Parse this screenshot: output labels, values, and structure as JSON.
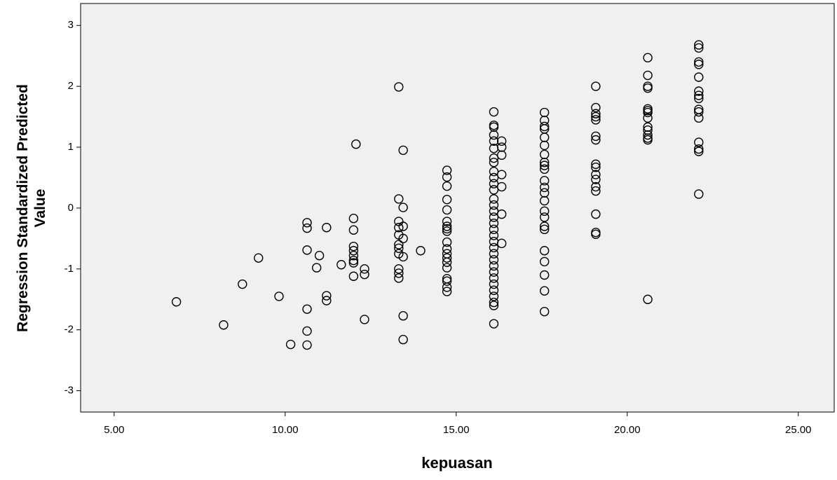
{
  "chart_data": {
    "type": "scatter",
    "x_label": "kepuasan",
    "y_label": "Regression Standardized Predicted Value",
    "color": "#000000",
    "xlim": [
      4.02,
      26.05
    ],
    "ylim": [
      -3.35,
      3.36
    ],
    "xticks": [
      {
        "value": 5,
        "label": "5.00"
      },
      {
        "value": 10,
        "label": "10.00"
      },
      {
        "value": 15,
        "label": "15.00"
      },
      {
        "value": 20,
        "label": "20.00"
      },
      {
        "value": 25,
        "label": "25.00"
      }
    ],
    "yticks": [
      -3,
      -2,
      -1,
      0,
      1,
      2,
      3
    ],
    "x": [
      6.82,
      8.2,
      8.75,
      9.22,
      9.82,
      10.16,
      10.64,
      10.64,
      10.64,
      10.64,
      10.64,
      10.64,
      10.92,
      11.0,
      11.21,
      11.21,
      11.21,
      11.64,
      12.0,
      12.0,
      12.0,
      12.0,
      12.0,
      12.0,
      12.0,
      12.0,
      12.07,
      12.32,
      12.32,
      12.32,
      13.32,
      13.32,
      13.32,
      13.32,
      13.32,
      13.32,
      13.32,
      13.32,
      13.32,
      13.32,
      13.32,
      13.45,
      13.45,
      13.45,
      13.45,
      13.45,
      13.45,
      13.45,
      13.96,
      14.73,
      14.73,
      14.73,
      14.73,
      14.73,
      14.73,
      14.73,
      14.73,
      14.73,
      14.73,
      14.73,
      14.73,
      14.73,
      14.73,
      14.73,
      14.73,
      14.73,
      14.73,
      14.73,
      16.1,
      16.1,
      16.1,
      16.1,
      16.1,
      16.1,
      16.1,
      16.1,
      16.1,
      16.1,
      16.1,
      16.1,
      16.1,
      16.1,
      16.1,
      16.1,
      16.1,
      16.1,
      16.1,
      16.1,
      16.1,
      16.1,
      16.1,
      16.1,
      16.1,
      16.1,
      16.1,
      16.1,
      16.1,
      16.1,
      16.1,
      16.1,
      16.33,
      16.33,
      16.33,
      16.33,
      16.33,
      16.33,
      16.33,
      17.58,
      17.58,
      17.58,
      17.58,
      17.58,
      17.58,
      17.58,
      17.58,
      17.58,
      17.58,
      17.58,
      17.58,
      17.58,
      17.58,
      17.58,
      17.58,
      17.58,
      17.58,
      17.58,
      17.58,
      17.58,
      17.58,
      17.58,
      19.08,
      19.08,
      19.08,
      19.08,
      19.08,
      19.08,
      19.08,
      19.08,
      19.08,
      19.08,
      19.08,
      19.08,
      19.08,
      19.08,
      19.08,
      19.08,
      20.6,
      20.6,
      20.6,
      20.6,
      20.6,
      20.6,
      20.6,
      20.6,
      20.6,
      20.6,
      20.6,
      20.6,
      20.6,
      20.6,
      22.09,
      22.09,
      22.09,
      22.09,
      22.09,
      22.09,
      22.09,
      22.09,
      22.09,
      22.09,
      22.09,
      22.09,
      22.09,
      22.09,
      22.09
    ],
    "values": [
      -1.54,
      -1.92,
      -1.25,
      -0.82,
      -1.45,
      -2.24,
      -0.24,
      -0.33,
      -0.69,
      -1.66,
      -2.02,
      -2.25,
      -0.98,
      -0.78,
      -0.32,
      -1.44,
      -1.52,
      -0.93,
      -0.17,
      -0.36,
      -0.63,
      -0.7,
      -0.78,
      -0.86,
      -0.9,
      -1.12,
      1.05,
      -1.0,
      -1.09,
      -1.83,
      1.99,
      0.15,
      -0.22,
      -0.32,
      -0.44,
      -0.6,
      -0.66,
      -0.75,
      -1.0,
      -1.07,
      -1.15,
      0.95,
      0.01,
      -0.3,
      -0.5,
      -0.8,
      -1.77,
      -2.16,
      -0.7,
      0.62,
      0.51,
      0.36,
      0.14,
      -0.03,
      -0.22,
      -0.3,
      -0.34,
      -0.38,
      -0.56,
      -0.67,
      -0.75,
      -0.82,
      -0.89,
      -0.98,
      -1.16,
      -1.2,
      -1.3,
      -1.37,
      1.58,
      1.36,
      1.33,
      1.2,
      1.1,
      0.98,
      0.82,
      0.75,
      0.6,
      0.5,
      0.4,
      0.3,
      0.15,
      0.05,
      -0.05,
      -0.15,
      -0.25,
      -0.35,
      -0.45,
      -0.55,
      -0.65,
      -0.75,
      -0.85,
      -0.95,
      -1.05,
      -1.15,
      -1.25,
      -1.35,
      -1.45,
      -1.55,
      -1.6,
      -1.9,
      1.1,
      1.0,
      0.87,
      0.55,
      0.35,
      -0.1,
      -0.58,
      1.57,
      1.44,
      1.34,
      1.3,
      1.16,
      1.03,
      0.88,
      0.75,
      0.7,
      0.64,
      0.45,
      0.34,
      0.25,
      0.12,
      -0.05,
      -0.15,
      -0.3,
      -0.35,
      -0.7,
      -0.88,
      -1.1,
      -1.36,
      -1.7,
      2.0,
      1.65,
      1.55,
      1.5,
      1.45,
      1.18,
      1.12,
      0.72,
      0.67,
      0.55,
      0.47,
      0.35,
      0.28,
      -0.1,
      -0.4,
      -0.43,
      2.47,
      2.18,
      2.0,
      1.97,
      1.63,
      1.6,
      1.57,
      1.48,
      1.33,
      1.28,
      1.2,
      1.15,
      1.12,
      -1.5,
      2.68,
      2.63,
      2.4,
      2.36,
      2.15,
      1.92,
      1.85,
      1.8,
      1.62,
      1.58,
      1.48,
      1.08,
      0.97,
      0.93,
      0.23
    ]
  }
}
